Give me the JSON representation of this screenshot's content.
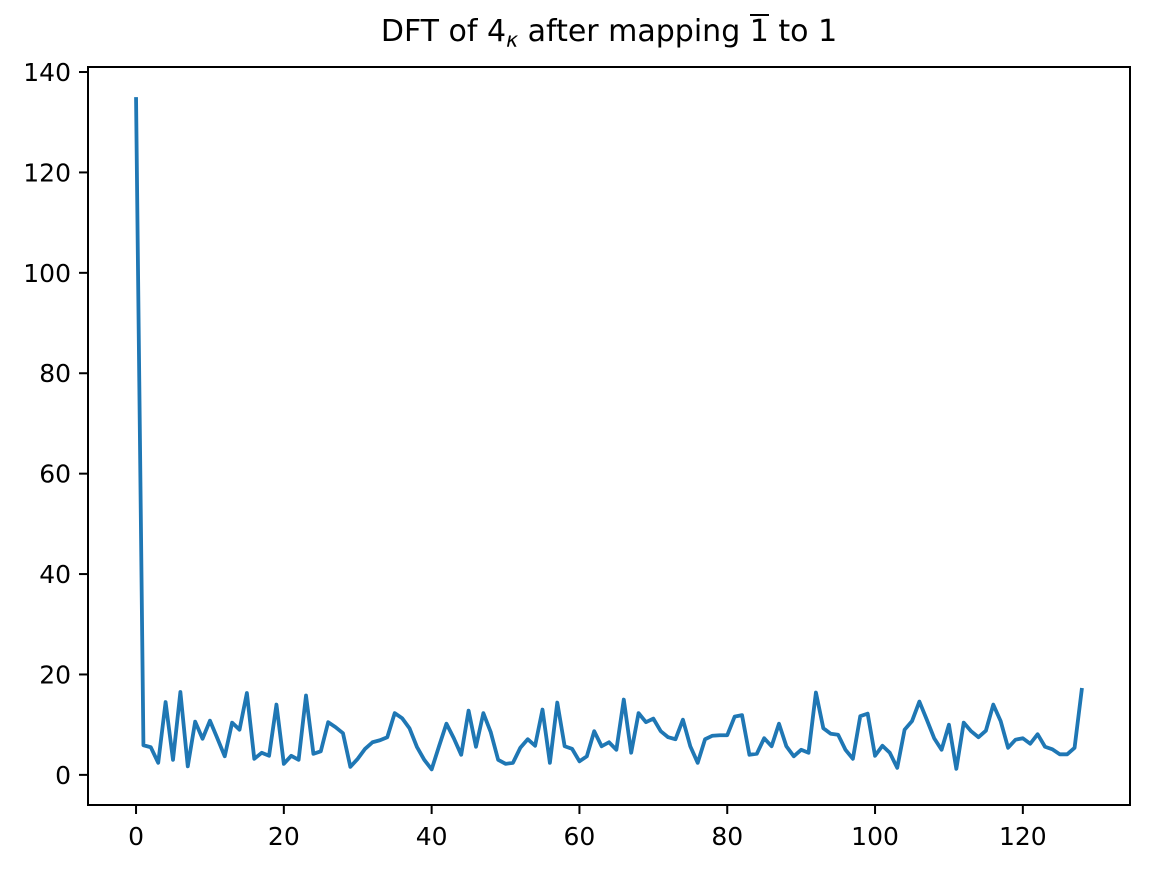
{
  "chart_data": {
    "type": "line",
    "title": "DFT of 4κ after mapping 1̄ to 1",
    "title_parts": {
      "prefix": "DFT of 4",
      "subscript": "κ",
      "mid": " after mapping ",
      "overbar": "1",
      "suffix": " to 1"
    },
    "xlabel": "",
    "ylabel": "",
    "x_start": 0,
    "x_step": 1,
    "values": [
      135,
      5.9,
      5.5,
      2.4,
      14.5,
      3.0,
      16.5,
      1.7,
      10.6,
      7.2,
      10.8,
      7.3,
      3.7,
      10.4,
      9.0,
      16.3,
      3.2,
      4.4,
      3.8,
      14.0,
      2.2,
      3.8,
      3.0,
      15.8,
      4.2,
      4.7,
      10.5,
      9.5,
      8.3,
      1.6,
      3.2,
      5.2,
      6.5,
      6.9,
      7.5,
      12.3,
      11.3,
      9.3,
      5.6,
      3.0,
      1.1,
      5.7,
      10.2,
      7.3,
      4.0,
      12.8,
      5.6,
      12.3,
      8.5,
      3.0,
      2.2,
      2.4,
      5.4,
      7.1,
      5.8,
      13.0,
      2.4,
      14.4,
      5.7,
      5.2,
      2.7,
      3.7,
      8.7,
      5.7,
      6.5,
      5.0,
      15.0,
      4.4,
      12.3,
      10.5,
      11.2,
      8.7,
      7.5,
      7.1,
      11.0,
      5.7,
      2.4,
      7.1,
      7.8,
      7.9,
      7.9,
      11.6,
      11.9,
      4.0,
      4.2,
      7.3,
      5.7,
      10.2,
      5.7,
      3.7,
      5.0,
      4.4,
      16.4,
      9.3,
      8.2,
      8.0,
      5.0,
      3.2,
      11.7,
      12.2,
      3.8,
      5.8,
      4.4,
      1.4,
      9.0,
      10.7,
      14.6,
      11.0,
      7.3,
      5.0,
      10.0,
      1.2,
      10.4,
      8.7,
      7.5,
      8.8,
      14.0,
      10.7,
      5.4,
      7.0,
      7.3,
      6.2,
      8.1,
      5.6,
      5.1,
      4.1,
      4.1,
      5.4,
      17.3
    ],
    "xlim": [
      -6.5,
      134.5
    ],
    "ylim": [
      -6,
      141
    ],
    "xticks": [
      0,
      20,
      40,
      60,
      80,
      100,
      120
    ],
    "yticks": [
      0,
      20,
      40,
      60,
      80,
      100,
      120,
      140
    ],
    "grid": false,
    "legend": null,
    "line_color": "#1f77b4",
    "axis_color": "#000000"
  }
}
